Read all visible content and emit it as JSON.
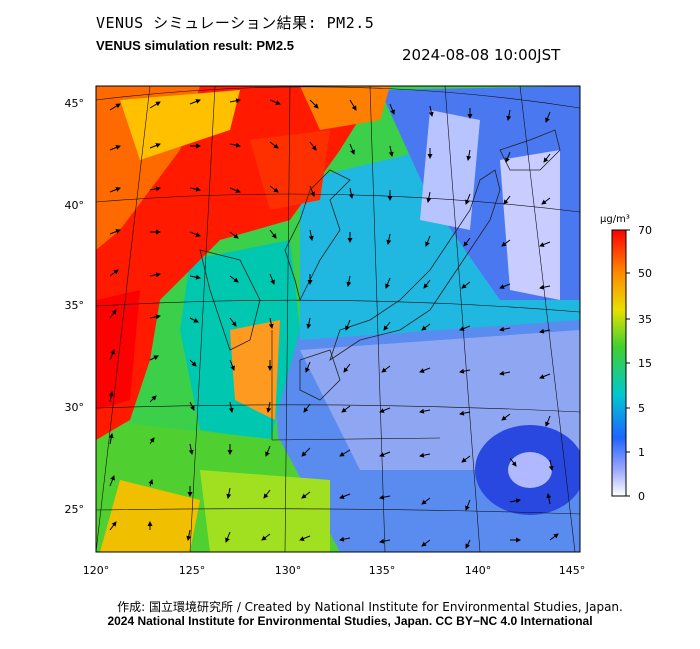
{
  "header": {
    "title_jp": "VENUS シミュレーション結果: PM2.5",
    "title_en": "VENUS simulation result: PM2.5",
    "timestamp": "2024-08-08 10:00JST"
  },
  "map": {
    "lat_labels": [
      "45°",
      "40°",
      "35°",
      "30°",
      "25°"
    ],
    "lon_labels": [
      "120°",
      "125°",
      "130°",
      "135°",
      "140°",
      "145°"
    ]
  },
  "colorbar": {
    "unit": "μg/m³",
    "ticks": [
      "70",
      "50",
      "35",
      "15",
      "5",
      "1",
      "0"
    ],
    "colors": [
      "#ff0000",
      "#ff8000",
      "#ffd000",
      "#30d030",
      "#00c8d0",
      "#1e64ff",
      "#ffffff"
    ]
  },
  "footer": {
    "credit_line": "作成: 国立環境研究所 / Created by National Institute for Environmental Studies, Japan.",
    "copyright_line": "2024 National Institute for Environmental Studies, Japan. CC BY−NC 4.0 International"
  }
}
